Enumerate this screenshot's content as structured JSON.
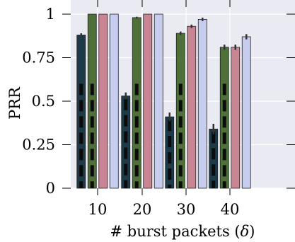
{
  "chart_data": {
    "type": "bar",
    "title": "",
    "xlabel": "# burst packets (",
    "xlabel_symbol": "δ",
    "xlabel_suffix": ")",
    "ylabel": "PRR",
    "categories": [
      "10",
      "20",
      "30",
      "40"
    ],
    "ylim": [
      0,
      1
    ],
    "yticks": [
      {
        "value": 0,
        "label": "0"
      },
      {
        "value": 0.25,
        "label": "0.25"
      },
      {
        "value": 0.5,
        "label": "0.5"
      },
      {
        "value": 0.75,
        "label": "0.75"
      },
      {
        "value": 1,
        "label": "1"
      }
    ],
    "grid": true,
    "legend": "none",
    "series": [
      {
        "color": "#1d3a48",
        "values": [
          0.88,
          0.53,
          0.41,
          0.34
        ],
        "err": [
          0.01,
          0.02,
          0.025,
          0.03
        ],
        "dashed_lower": true
      },
      {
        "color": "#4f7038",
        "values": [
          1.0,
          0.98,
          0.89,
          0.81
        ],
        "err": [
          0.0,
          0.005,
          0.01,
          0.015
        ],
        "dashed_lower": true
      },
      {
        "color": "#c98594",
        "values": [
          1.0,
          1.0,
          0.93,
          0.81
        ],
        "err": [
          0.0,
          0.0,
          0.01,
          0.015
        ],
        "dashed_lower": false
      },
      {
        "color": "#c6cdef",
        "values": [
          1.0,
          1.0,
          0.97,
          0.87
        ],
        "err": [
          0.0,
          0.0,
          0.01,
          0.015
        ],
        "dashed_lower": false
      }
    ]
  }
}
